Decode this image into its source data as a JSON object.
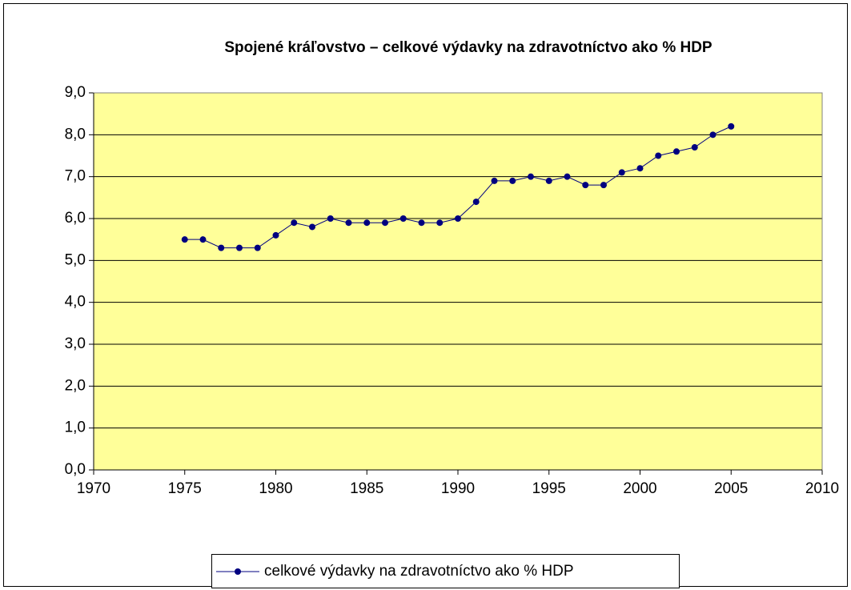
{
  "chart_data": {
    "type": "line",
    "title": "Spojené kráľovstvo – celkové výdavky na zdravotníctvo ako % HDP",
    "x": [
      1975,
      1976,
      1977,
      1978,
      1979,
      1980,
      1981,
      1982,
      1983,
      1984,
      1985,
      1986,
      1987,
      1988,
      1989,
      1990,
      1991,
      1992,
      1993,
      1994,
      1995,
      1996,
      1997,
      1998,
      1999,
      2000,
      2001,
      2002,
      2003,
      2004,
      2005
    ],
    "series": [
      {
        "name": "celkové výdavky na zdravotníctvo ako % HDP",
        "color": "#000080",
        "values": [
          5.5,
          5.5,
          5.3,
          5.3,
          5.3,
          5.6,
          5.9,
          5.8,
          6.0,
          5.9,
          5.9,
          5.9,
          6.0,
          5.9,
          5.9,
          6.0,
          6.4,
          6.9,
          6.9,
          7.0,
          6.9,
          7.0,
          6.8,
          6.8,
          7.1,
          7.2,
          7.5,
          7.6,
          7.7,
          8.0,
          8.2
        ]
      }
    ],
    "xlim": [
      1970,
      2010
    ],
    "xticks": [
      1970,
      1975,
      1980,
      1985,
      1990,
      1995,
      2000,
      2005,
      2010
    ],
    "ylim": [
      0,
      9
    ],
    "yticks": [
      {
        "value": 0,
        "label": "0,0"
      },
      {
        "value": 1,
        "label": "1,0"
      },
      {
        "value": 2,
        "label": "2,0"
      },
      {
        "value": 3,
        "label": "3,0"
      },
      {
        "value": 4,
        "label": "4,0"
      },
      {
        "value": 5,
        "label": "5,0"
      },
      {
        "value": 6,
        "label": "6,0"
      },
      {
        "value": 7,
        "label": "7,0"
      },
      {
        "value": 8,
        "label": "8,0"
      },
      {
        "value": 9,
        "label": "9,0"
      }
    ],
    "grid": true,
    "plot_background": "#ffff99",
    "legend": "bottom"
  }
}
